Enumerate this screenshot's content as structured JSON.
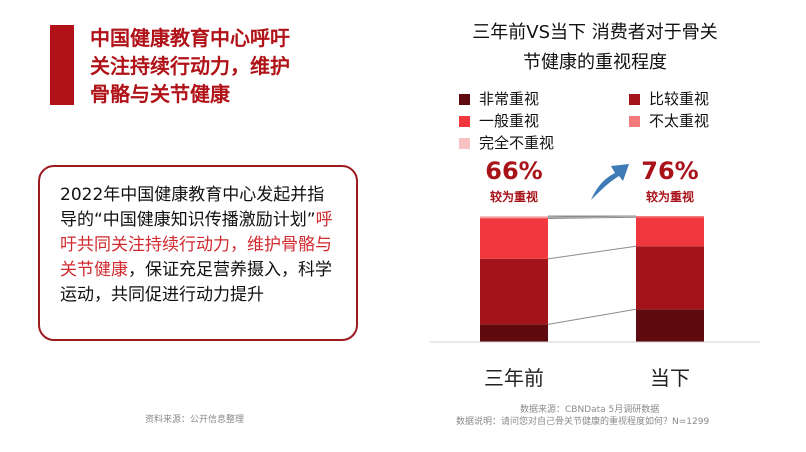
{
  "left": {
    "title": "中国健康教育中心呼吁\n关注持续行动力，维护\n骨骼与关节健康",
    "body_plain_1": "2022年中国健康教育中心发起并指导的“中国健康知识传播激励计划”",
    "body_highlight": "呼吁共同关注持续行动力，维护骨骼与关节健康",
    "body_plain_2": "，保证充足营养摄入，科学运动，共同促进行动力提升",
    "source": "资料来源：公开信息整理"
  },
  "chart_data": {
    "type": "bar",
    "stacked": true,
    "unit": "%",
    "title": "三年前VS当下 消费者对于骨关\n节健康的重视程度",
    "categories": [
      "三年前",
      "当下"
    ],
    "series": [
      {
        "name": "非常重视",
        "color": "#5e0a0e",
        "values": [
          14,
          26
        ]
      },
      {
        "name": "比较重视",
        "color": "#a3141a",
        "values": [
          52,
          50
        ]
      },
      {
        "name": "一般重视",
        "color": "#f0383e",
        "values": [
          32,
          23
        ]
      },
      {
        "name": "不太重视",
        "color": "#f27a7c",
        "values": [
          1,
          1
        ]
      },
      {
        "name": "完全不重视",
        "color": "#f8c2c3",
        "values": [
          1,
          0
        ]
      }
    ],
    "ylim": [
      0,
      100
    ],
    "annotations": [
      {
        "category": "三年前",
        "value": "66%",
        "label": "较为重视"
      },
      {
        "category": "当下",
        "value": "76%",
        "label": "较为重视"
      }
    ],
    "source": "数据来源：CBNData 5月调研数据",
    "note": "数据说明：请问您对自己骨关节健康的重视程度如何？N=1299"
  },
  "icons": {
    "arrow": "curved-up-arrow-icon",
    "arrow_color": "#3e7bb6"
  },
  "colors": {
    "accent": "#b01218",
    "highlight_text": "#d12a2f",
    "border": "#9b1b1f"
  }
}
